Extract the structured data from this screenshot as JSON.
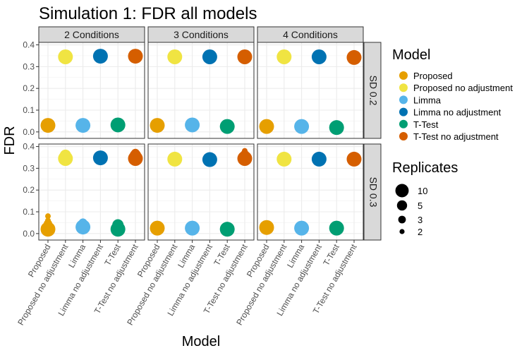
{
  "chart_data": {
    "type": "scatter",
    "title": "Simulation 1: FDR all models",
    "xlabel": "Model",
    "ylabel": "FDR",
    "ylim": [
      0,
      0.4
    ],
    "yticks": [
      0.0,
      0.1,
      0.2,
      0.3,
      0.4
    ],
    "ytick_labels": [
      "0.0",
      "0.1",
      "0.2",
      "0.3",
      "0.4"
    ],
    "grid": true,
    "categories": [
      "Proposed",
      "Proposed no adjustment",
      "Limma",
      "Limma no adjustment",
      "T-Test",
      "T-Test no adjustment"
    ],
    "facet_cols": [
      "2 Conditions",
      "3 Conditions",
      "4 Conditions"
    ],
    "facet_rows": [
      "SD 0.2",
      "SD 0.3"
    ],
    "color_legend": {
      "title": "Model",
      "position": "right",
      "entries": [
        {
          "label": "Proposed",
          "color": "#E69F00"
        },
        {
          "label": "Proposed no adjustment",
          "color": "#F0E442"
        },
        {
          "label": "Limma",
          "color": "#56B4E9"
        },
        {
          "label": "Limma no adjustment",
          "color": "#0072B2"
        },
        {
          "label": "T-Test",
          "color": "#009E73"
        },
        {
          "label": "T-Test no adjustment",
          "color": "#D55E00"
        }
      ]
    },
    "size_legend": {
      "title": "Replicates",
      "position": "right",
      "entries": [
        {
          "label": "10",
          "value": 10
        },
        {
          "label": "5",
          "value": 5
        },
        {
          "label": "3",
          "value": 3
        },
        {
          "label": "2",
          "value": 2
        }
      ]
    },
    "series": [
      {
        "col": 0,
        "row": 0,
        "points": [
          {
            "model": 0,
            "values": [
              {
                "y": 0.03,
                "r": 10
              },
              {
                "y": 0.03,
                "r": 5
              },
              {
                "y": 0.028,
                "r": 3
              },
              {
                "y": 0.03,
                "r": 2
              }
            ]
          },
          {
            "model": 1,
            "values": [
              {
                "y": 0.345,
                "r": 10
              },
              {
                "y": 0.345,
                "r": 5
              },
              {
                "y": 0.345,
                "r": 3
              },
              {
                "y": 0.345,
                "r": 2
              }
            ]
          },
          {
            "model": 2,
            "values": [
              {
                "y": 0.03,
                "r": 10
              },
              {
                "y": 0.03,
                "r": 5
              },
              {
                "y": 0.03,
                "r": 3
              },
              {
                "y": 0.03,
                "r": 2
              }
            ]
          },
          {
            "model": 3,
            "values": [
              {
                "y": 0.348,
                "r": 10
              },
              {
                "y": 0.348,
                "r": 5
              },
              {
                "y": 0.348,
                "r": 3
              },
              {
                "y": 0.348,
                "r": 2
              }
            ]
          },
          {
            "model": 4,
            "values": [
              {
                "y": 0.032,
                "r": 10
              },
              {
                "y": 0.032,
                "r": 5
              },
              {
                "y": 0.03,
                "r": 3
              },
              {
                "y": 0.03,
                "r": 2
              }
            ]
          },
          {
            "model": 5,
            "values": [
              {
                "y": 0.348,
                "r": 10
              },
              {
                "y": 0.348,
                "r": 5
              },
              {
                "y": 0.348,
                "r": 3
              },
              {
                "y": 0.348,
                "r": 2
              }
            ]
          }
        ]
      },
      {
        "col": 1,
        "row": 0,
        "points": [
          {
            "model": 0,
            "values": [
              {
                "y": 0.03,
                "r": 10
              },
              {
                "y": 0.03,
                "r": 5
              },
              {
                "y": 0.03,
                "r": 3
              },
              {
                "y": 0.03,
                "r": 2
              }
            ]
          },
          {
            "model": 1,
            "values": [
              {
                "y": 0.345,
                "r": 10
              },
              {
                "y": 0.345,
                "r": 5
              },
              {
                "y": 0.345,
                "r": 3
              },
              {
                "y": 0.345,
                "r": 2
              }
            ]
          },
          {
            "model": 2,
            "values": [
              {
                "y": 0.032,
                "r": 10
              },
              {
                "y": 0.032,
                "r": 5
              },
              {
                "y": 0.03,
                "r": 3
              },
              {
                "y": 0.03,
                "r": 2
              }
            ]
          },
          {
            "model": 3,
            "values": [
              {
                "y": 0.345,
                "r": 10
              },
              {
                "y": 0.345,
                "r": 5
              },
              {
                "y": 0.345,
                "r": 3
              },
              {
                "y": 0.345,
                "r": 2
              }
            ]
          },
          {
            "model": 4,
            "values": [
              {
                "y": 0.025,
                "r": 10
              },
              {
                "y": 0.025,
                "r": 5
              },
              {
                "y": 0.025,
                "r": 3
              },
              {
                "y": 0.025,
                "r": 2
              }
            ]
          },
          {
            "model": 5,
            "values": [
              {
                "y": 0.345,
                "r": 10
              },
              {
                "y": 0.345,
                "r": 5
              },
              {
                "y": 0.345,
                "r": 3
              },
              {
                "y": 0.345,
                "r": 2
              }
            ]
          }
        ]
      },
      {
        "col": 2,
        "row": 0,
        "points": [
          {
            "model": 0,
            "values": [
              {
                "y": 0.025,
                "r": 10
              },
              {
                "y": 0.025,
                "r": 5
              },
              {
                "y": 0.025,
                "r": 3
              },
              {
                "y": 0.025,
                "r": 2
              }
            ]
          },
          {
            "model": 1,
            "values": [
              {
                "y": 0.345,
                "r": 10
              },
              {
                "y": 0.345,
                "r": 5
              },
              {
                "y": 0.345,
                "r": 3
              },
              {
                "y": 0.345,
                "r": 2
              }
            ]
          },
          {
            "model": 2,
            "values": [
              {
                "y": 0.025,
                "r": 10
              },
              {
                "y": 0.025,
                "r": 5
              },
              {
                "y": 0.025,
                "r": 3
              },
              {
                "y": 0.025,
                "r": 2
              }
            ]
          },
          {
            "model": 3,
            "values": [
              {
                "y": 0.345,
                "r": 10
              },
              {
                "y": 0.345,
                "r": 5
              },
              {
                "y": 0.345,
                "r": 3
              },
              {
                "y": 0.345,
                "r": 2
              }
            ]
          },
          {
            "model": 4,
            "values": [
              {
                "y": 0.02,
                "r": 10
              },
              {
                "y": 0.02,
                "r": 5
              },
              {
                "y": 0.02,
                "r": 3
              },
              {
                "y": 0.02,
                "r": 2
              }
            ]
          },
          {
            "model": 5,
            "values": [
              {
                "y": 0.342,
                "r": 10
              },
              {
                "y": 0.342,
                "r": 5
              },
              {
                "y": 0.342,
                "r": 3
              },
              {
                "y": 0.342,
                "r": 2
              }
            ]
          }
        ]
      },
      {
        "col": 0,
        "row": 1,
        "points": [
          {
            "model": 0,
            "values": [
              {
                "y": 0.02,
                "r": 10
              },
              {
                "y": 0.03,
                "r": 5
              },
              {
                "y": 0.045,
                "r": 3
              },
              {
                "y": 0.08,
                "r": 2
              },
              {
                "y": 0.06,
                "r": 2
              },
              {
                "y": 0.01,
                "r": 3
              }
            ]
          },
          {
            "model": 1,
            "values": [
              {
                "y": 0.345,
                "r": 10
              },
              {
                "y": 0.36,
                "r": 5
              },
              {
                "y": 0.37,
                "r": 2
              },
              {
                "y": 0.34,
                "r": 3
              }
            ]
          },
          {
            "model": 2,
            "values": [
              {
                "y": 0.03,
                "r": 10
              },
              {
                "y": 0.04,
                "r": 5
              },
              {
                "y": 0.05,
                "r": 3
              },
              {
                "y": 0.025,
                "r": 2
              }
            ]
          },
          {
            "model": 3,
            "values": [
              {
                "y": 0.348,
                "r": 10
              },
              {
                "y": 0.348,
                "r": 5
              },
              {
                "y": 0.348,
                "r": 3
              },
              {
                "y": 0.348,
                "r": 2
              }
            ]
          },
          {
            "model": 4,
            "values": [
              {
                "y": 0.02,
                "r": 10
              },
              {
                "y": 0.04,
                "r": 5
              },
              {
                "y": 0.045,
                "r": 3
              },
              {
                "y": 0.015,
                "r": 2
              }
            ]
          },
          {
            "model": 5,
            "values": [
              {
                "y": 0.345,
                "r": 10
              },
              {
                "y": 0.36,
                "r": 5
              },
              {
                "y": 0.37,
                "r": 3
              },
              {
                "y": 0.375,
                "r": 2
              }
            ]
          }
        ]
      },
      {
        "col": 1,
        "row": 1,
        "points": [
          {
            "model": 0,
            "values": [
              {
                "y": 0.025,
                "r": 10
              },
              {
                "y": 0.025,
                "r": 5
              },
              {
                "y": 0.025,
                "r": 3
              },
              {
                "y": 0.025,
                "r": 2
              }
            ]
          },
          {
            "model": 1,
            "values": [
              {
                "y": 0.342,
                "r": 10
              },
              {
                "y": 0.342,
                "r": 5
              },
              {
                "y": 0.342,
                "r": 3
              },
              {
                "y": 0.342,
                "r": 2
              }
            ]
          },
          {
            "model": 2,
            "values": [
              {
                "y": 0.025,
                "r": 10
              },
              {
                "y": 0.025,
                "r": 5
              },
              {
                "y": 0.025,
                "r": 3
              },
              {
                "y": 0.025,
                "r": 2
              }
            ]
          },
          {
            "model": 3,
            "values": [
              {
                "y": 0.34,
                "r": 10
              },
              {
                "y": 0.34,
                "r": 5
              },
              {
                "y": 0.34,
                "r": 3
              },
              {
                "y": 0.34,
                "r": 2
              }
            ]
          },
          {
            "model": 4,
            "values": [
              {
                "y": 0.02,
                "r": 10
              },
              {
                "y": 0.02,
                "r": 5
              },
              {
                "y": 0.02,
                "r": 3
              },
              {
                "y": 0.02,
                "r": 2
              }
            ]
          },
          {
            "model": 5,
            "values": [
              {
                "y": 0.345,
                "r": 10
              },
              {
                "y": 0.355,
                "r": 5
              },
              {
                "y": 0.365,
                "r": 3
              },
              {
                "y": 0.38,
                "r": 2
              }
            ]
          }
        ]
      },
      {
        "col": 2,
        "row": 1,
        "points": [
          {
            "model": 0,
            "values": [
              {
                "y": 0.028,
                "r": 10
              },
              {
                "y": 0.028,
                "r": 5
              },
              {
                "y": 0.028,
                "r": 3
              },
              {
                "y": 0.028,
                "r": 2
              }
            ]
          },
          {
            "model": 1,
            "values": [
              {
                "y": 0.342,
                "r": 10
              },
              {
                "y": 0.342,
                "r": 5
              },
              {
                "y": 0.342,
                "r": 3
              },
              {
                "y": 0.342,
                "r": 2
              }
            ]
          },
          {
            "model": 2,
            "values": [
              {
                "y": 0.025,
                "r": 10
              },
              {
                "y": 0.025,
                "r": 5
              },
              {
                "y": 0.025,
                "r": 3
              },
              {
                "y": 0.025,
                "r": 2
              }
            ]
          },
          {
            "model": 3,
            "values": [
              {
                "y": 0.342,
                "r": 10
              },
              {
                "y": 0.342,
                "r": 5
              },
              {
                "y": 0.342,
                "r": 3
              },
              {
                "y": 0.342,
                "r": 2
              }
            ]
          },
          {
            "model": 4,
            "values": [
              {
                "y": 0.025,
                "r": 10
              },
              {
                "y": 0.025,
                "r": 5
              },
              {
                "y": 0.025,
                "r": 3
              },
              {
                "y": 0.025,
                "r": 2
              }
            ]
          },
          {
            "model": 5,
            "values": [
              {
                "y": 0.342,
                "r": 10
              },
              {
                "y": 0.342,
                "r": 5
              },
              {
                "y": 0.342,
                "r": 3
              },
              {
                "y": 0.342,
                "r": 2
              }
            ]
          }
        ]
      }
    ]
  }
}
